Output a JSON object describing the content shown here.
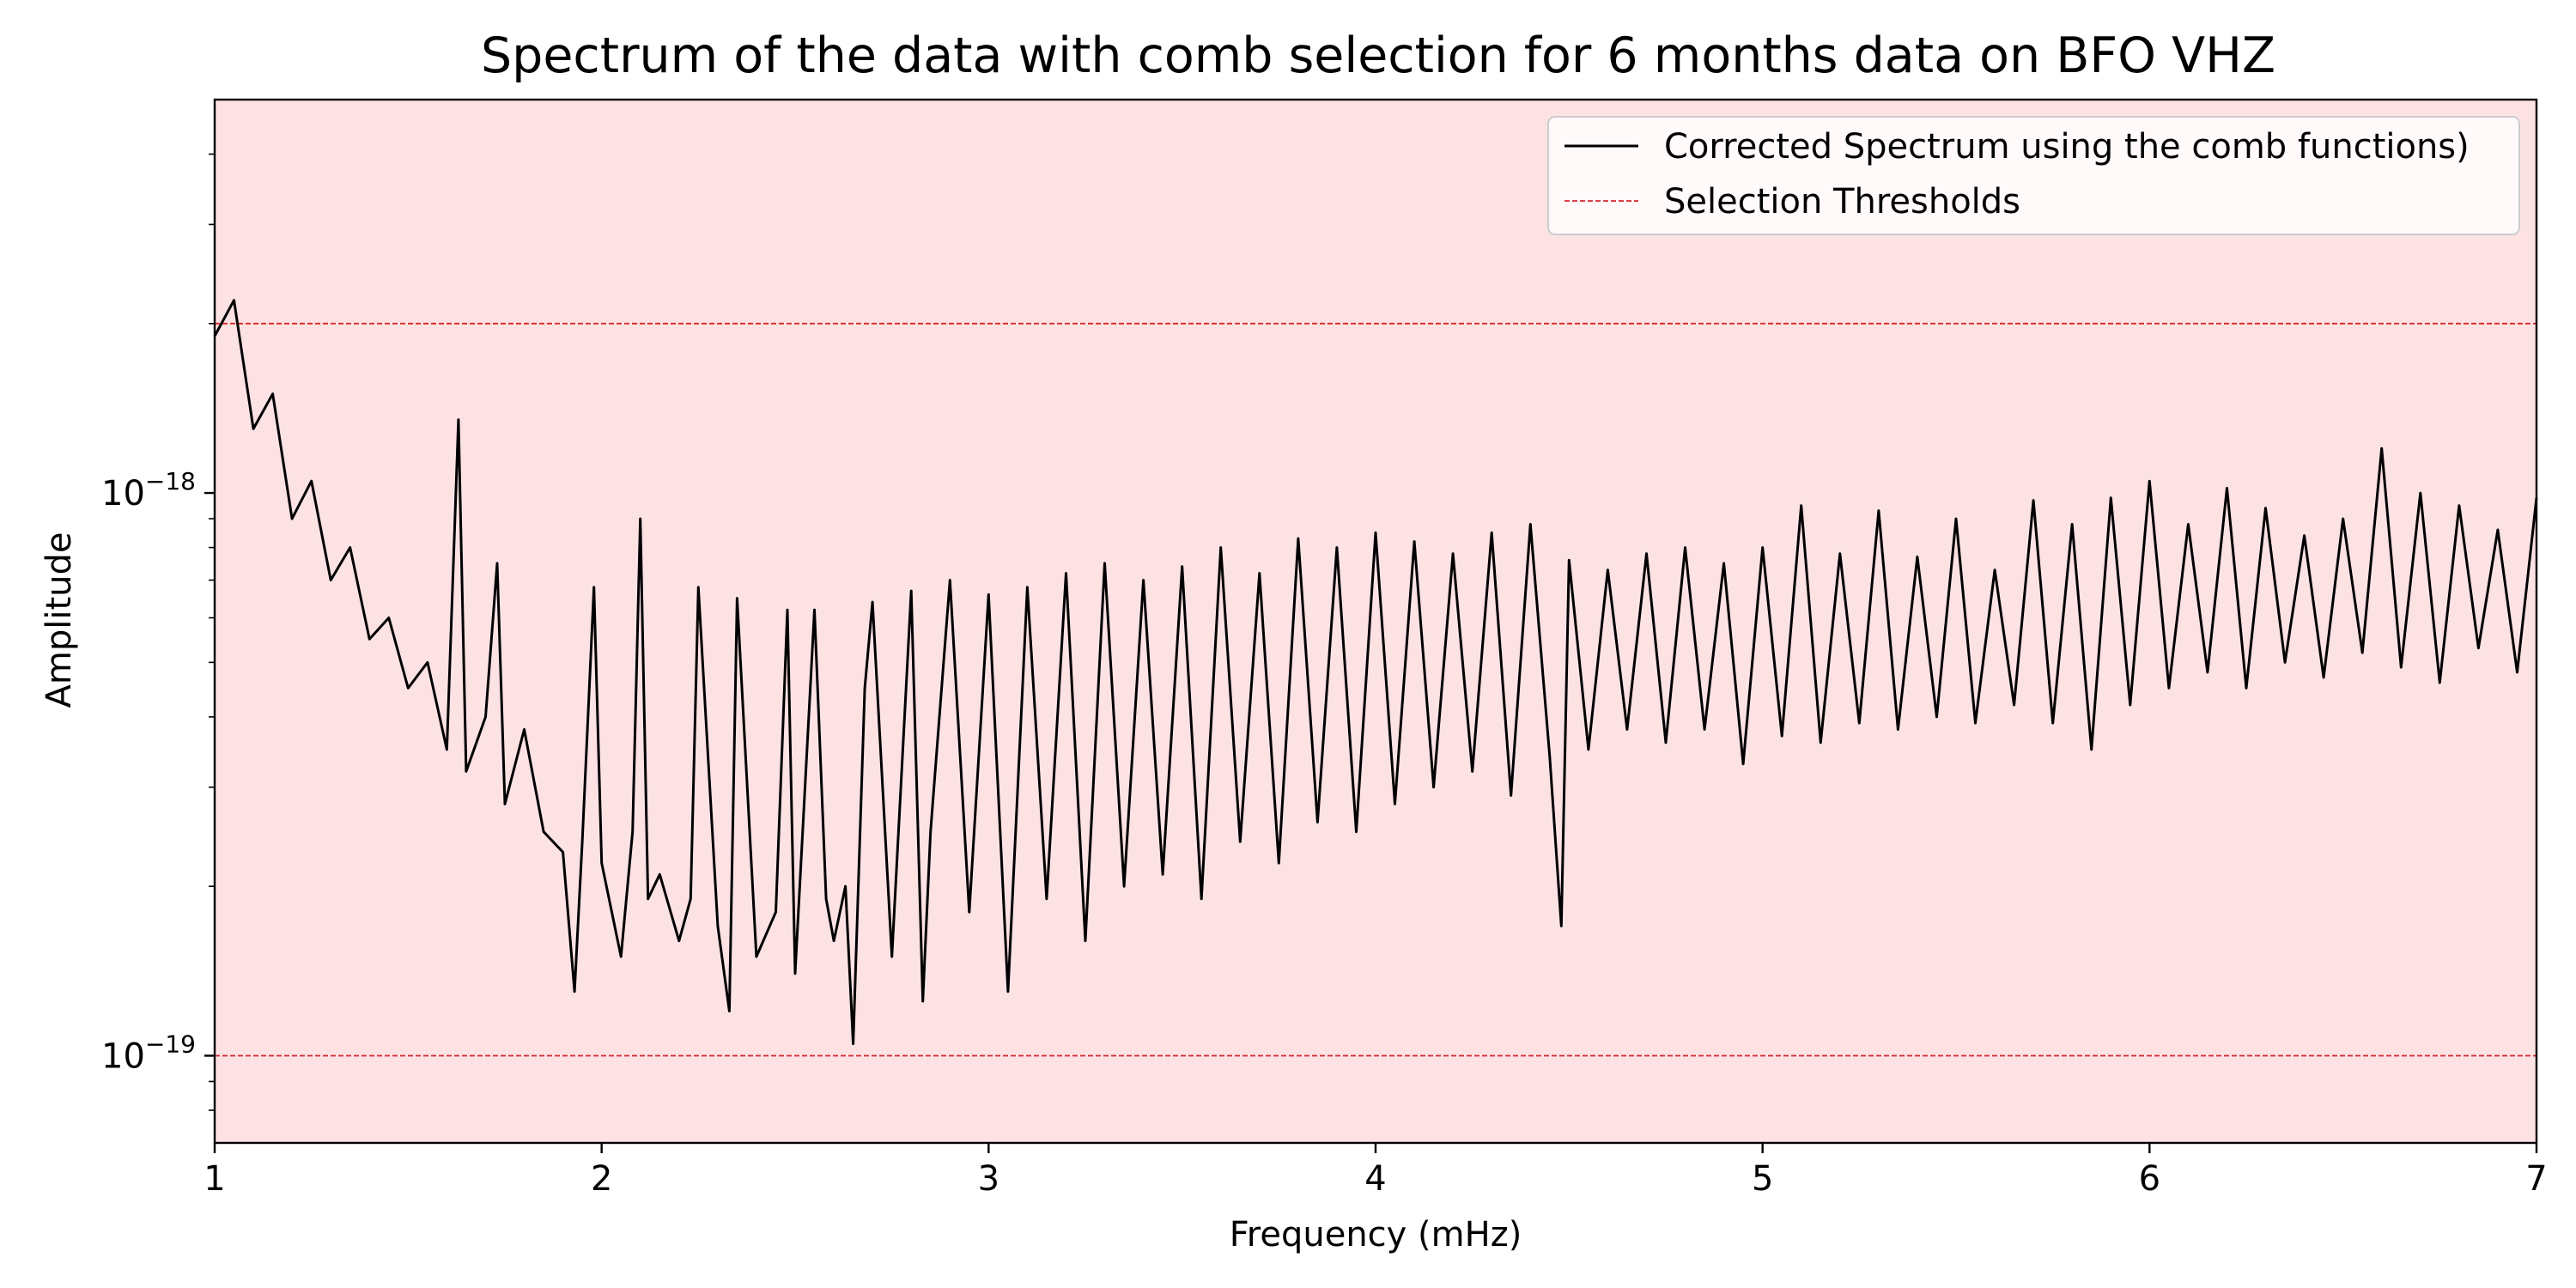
{
  "chart_data": {
    "type": "line",
    "title": "Spectrum of the data with comb selection for 6 months data on BFO VHZ",
    "xlabel": "Frequency (mHz)",
    "ylabel": "Amplitude",
    "xlim": [
      1,
      7
    ],
    "ylim": [
      7e-20,
      5e-18
    ],
    "yscale": "log",
    "grid": false,
    "legend_position": "top-right",
    "background_color": "#fde2e4",
    "x_ticks": [
      "1",
      "2",
      "3",
      "4",
      "5",
      "6",
      "7"
    ],
    "y_ticks": [
      {
        "value": 1e-19,
        "base": "10",
        "exponent": "−19"
      },
      {
        "value": 1e-18,
        "base": "10",
        "exponent": "−18"
      }
    ],
    "series": [
      {
        "name": "Corrected Spectrum using the comb functions)",
        "color": "#000000",
        "style": "solid",
        "x": [
          1.0,
          1.05,
          1.1,
          1.15,
          1.2,
          1.25,
          1.3,
          1.35,
          1.4,
          1.45,
          1.5,
          1.55,
          1.6,
          1.63,
          1.65,
          1.7,
          1.73,
          1.75,
          1.8,
          1.85,
          1.9,
          1.93,
          1.95,
          1.98,
          2.0,
          2.05,
          2.08,
          2.1,
          2.12,
          2.15,
          2.2,
          2.23,
          2.25,
          2.3,
          2.33,
          2.35,
          2.4,
          2.45,
          2.48,
          2.5,
          2.55,
          2.58,
          2.6,
          2.63,
          2.65,
          2.68,
          2.7,
          2.75,
          2.8,
          2.83,
          2.85,
          2.9,
          2.95,
          3.0,
          3.05,
          3.1,
          3.15,
          3.2,
          3.25,
          3.3,
          3.35,
          3.4,
          3.45,
          3.5,
          3.55,
          3.6,
          3.65,
          3.7,
          3.75,
          3.8,
          3.85,
          3.9,
          3.95,
          4.0,
          4.05,
          4.1,
          4.15,
          4.2,
          4.25,
          4.3,
          4.35,
          4.4,
          4.45,
          4.48,
          4.5,
          4.55,
          4.6,
          4.65,
          4.7,
          4.75,
          4.8,
          4.85,
          4.9,
          4.95,
          5.0,
          5.05,
          5.1,
          5.15,
          5.2,
          5.25,
          5.3,
          5.35,
          5.4,
          5.45,
          5.5,
          5.55,
          5.6,
          5.65,
          5.7,
          5.75,
          5.8,
          5.85,
          5.9,
          5.95,
          6.0,
          6.05,
          6.1,
          6.15,
          6.2,
          6.25,
          6.3,
          6.35,
          6.4,
          6.45,
          6.5,
          6.55,
          6.6,
          6.65,
          6.7,
          6.75,
          6.8,
          6.85,
          6.9,
          6.95,
          7.0
        ],
        "y": [
          1.9e-18,
          2.2e-18,
          1.3e-18,
          1.5e-18,
          9e-19,
          1.05e-18,
          7e-19,
          8e-19,
          5.5e-19,
          6e-19,
          4.5e-19,
          5e-19,
          3.5e-19,
          1.35e-18,
          3.2e-19,
          4e-19,
          7.5e-19,
          2.8e-19,
          3.8e-19,
          2.5e-19,
          2.3e-19,
          1.3e-19,
          2.4e-19,
          6.8e-19,
          2.2e-19,
          1.5e-19,
          2.5e-19,
          9e-19,
          1.9e-19,
          2.1e-19,
          1.6e-19,
          1.9e-19,
          6.8e-19,
          1.7e-19,
          1.2e-19,
          6.5e-19,
          1.5e-19,
          1.8e-19,
          6.2e-19,
          1.4e-19,
          6.2e-19,
          1.9e-19,
          1.6e-19,
          2e-19,
          1.05e-19,
          4.5e-19,
          6.4e-19,
          1.5e-19,
          6.7e-19,
          1.25e-19,
          2.5e-19,
          7e-19,
          1.8e-19,
          6.6e-19,
          1.3e-19,
          6.8e-19,
          1.9e-19,
          7.2e-19,
          1.6e-19,
          7.5e-19,
          2e-19,
          7e-19,
          2.1e-19,
          7.4e-19,
          1.9e-19,
          8e-19,
          2.4e-19,
          7.2e-19,
          2.2e-19,
          8.3e-19,
          2.6e-19,
          8e-19,
          2.5e-19,
          8.5e-19,
          2.8e-19,
          8.2e-19,
          3e-19,
          7.8e-19,
          3.2e-19,
          8.5e-19,
          2.9e-19,
          8.8e-19,
          3.4e-19,
          1.7e-19,
          7.6e-19,
          3.5e-19,
          7.3e-19,
          3.8e-19,
          7.8e-19,
          3.6e-19,
          8e-19,
          3.8e-19,
          7.5e-19,
          3.3e-19,
          8e-19,
          3.7e-19,
          9.5e-19,
          3.6e-19,
          7.8e-19,
          3.9e-19,
          9.3e-19,
          3.8e-19,
          7.7e-19,
          4e-19,
          9e-19,
          3.9e-19,
          7.3e-19,
          4.2e-19,
          9.7e-19,
          3.9e-19,
          8.8e-19,
          3.5e-19,
          9.8e-19,
          4.2e-19,
          1.05e-18,
          4.5e-19,
          8.8e-19,
          4.8e-19,
          1.02e-18,
          4.5e-19,
          9.4e-19,
          5e-19,
          8.4e-19,
          4.7e-19,
          9e-19,
          5.2e-19,
          1.2e-18,
          4.9e-19,
          1e-18,
          4.6e-19,
          9.5e-19,
          5.3e-19,
          8.6e-19,
          4.8e-19,
          9.8e-19
        ]
      },
      {
        "name": "Selection Thresholds",
        "color": "#d62728",
        "style": "dashed",
        "hlines": [
          2e-18,
          1e-19
        ]
      }
    ]
  }
}
